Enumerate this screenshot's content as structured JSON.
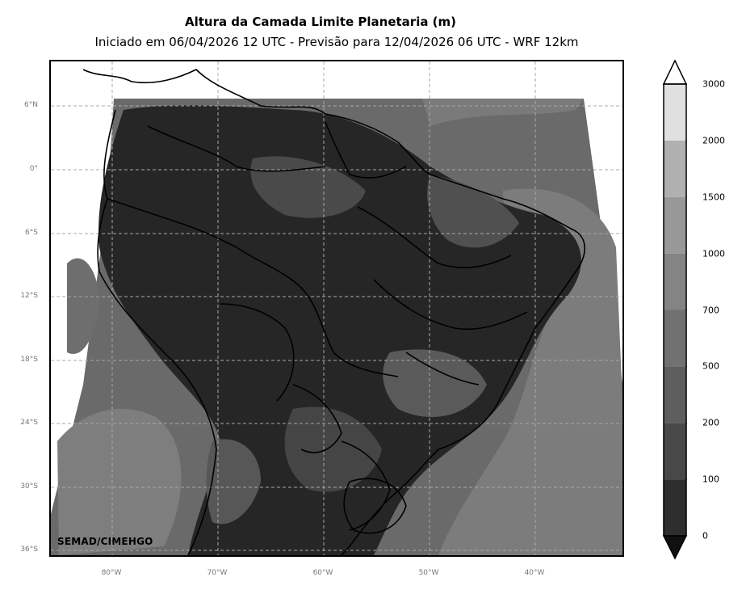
{
  "title": "Altura da Camada Limite Planetaria (m)",
  "subtitle": "Iniciado em 06/04/2026 12 UTC - Previsão para 12/04/2026 06 UTC - WRF 12km",
  "credit": "SEMAD/CIMEHGO",
  "lat_labels": [
    "6°N",
    "0°",
    "6°S",
    "12°S",
    "18°S",
    "24°S",
    "30°S",
    "36°S"
  ],
  "lon_labels": [
    "80°W",
    "70°W",
    "60°W",
    "50°W",
    "40°W"
  ],
  "colorbar": {
    "ticks": [
      "0",
      "100",
      "200",
      "500",
      "700",
      "1000",
      "1500",
      "2000",
      "3000"
    ],
    "colors": [
      "#1e1e1e",
      "#2e2e2e",
      "#484848",
      "#5e5e5e",
      "#717171",
      "#848484",
      "#989898",
      "#b0b0b0",
      "#e0e0e0"
    ],
    "extend_low_color": "#111111",
    "extend_high_color": "#ffffff"
  }
}
